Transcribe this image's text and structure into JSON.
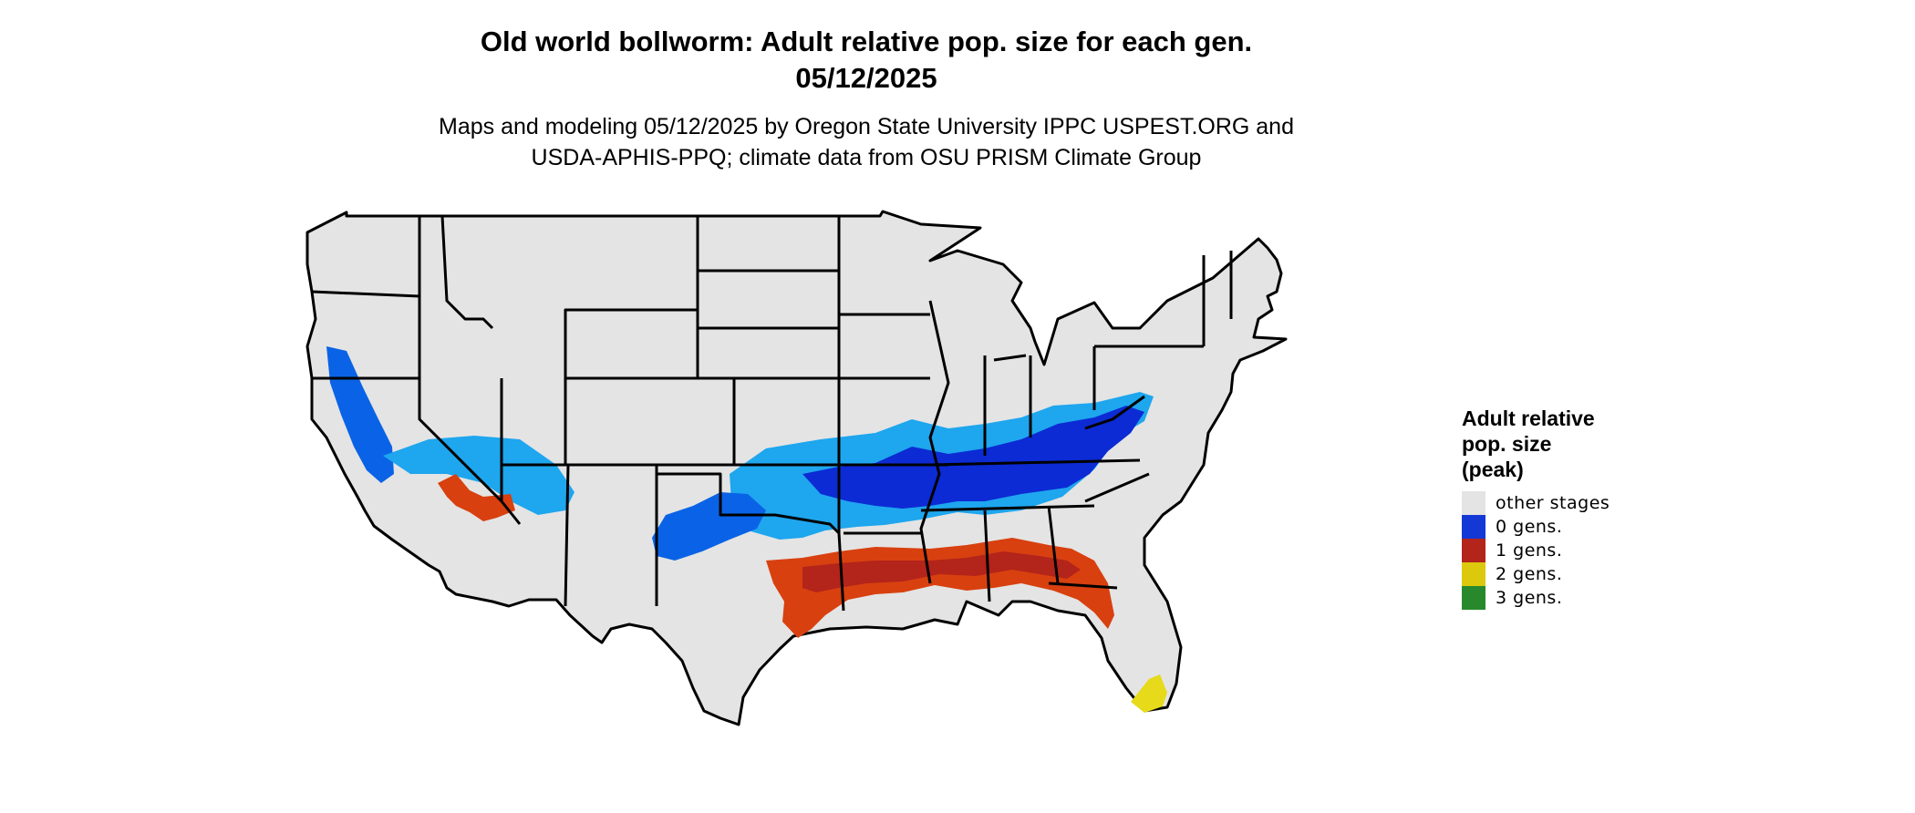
{
  "title": {
    "line1": "Old world bollworm: Adult relative pop. size for each gen.",
    "line2": "05/12/2025"
  },
  "subtitle": {
    "line1": "Maps and modeling 05/12/2025 by Oregon State University IPPC USPEST.ORG and",
    "line2": "USDA-APHIS-PPQ; climate data from OSU PRISM Climate Group"
  },
  "legend": {
    "title_lines": [
      "Adult relative",
      "pop. size",
      "(peak)"
    ],
    "items": [
      {
        "label": "other stages",
        "color": "#e4e4e4"
      },
      {
        "label": "0 gens.",
        "color": "#1338d6"
      },
      {
        "label": "1 gens.",
        "color": "#b3241a"
      },
      {
        "label": "2 gens.",
        "color": "#dcc80c"
      },
      {
        "label": "3 gens.",
        "color": "#27892b"
      }
    ]
  },
  "colors": {
    "land": "#e4e4e4",
    "border": "#000000",
    "light_blue": "#1ea6ee",
    "mid_blue": "#0a63e6",
    "dark_blue": "#0c2bd4",
    "orange": "#d8400f",
    "dark_red": "#b3241a",
    "yellow": "#e6da1a"
  }
}
